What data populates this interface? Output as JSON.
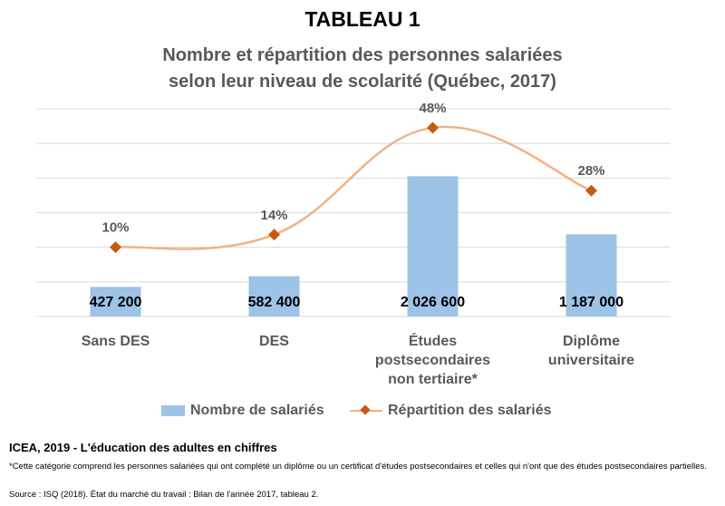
{
  "header": {
    "title": "TABLEAU 1",
    "subtitle_line1": "Nombre et répartition des personnes salariées",
    "subtitle_line2": "selon leur niveau de scolarité (Québec, 2017)"
  },
  "chart_data": {
    "type": "bar",
    "categories": [
      [
        "Sans DES"
      ],
      [
        "DES"
      ],
      [
        "Études",
        "postsecondaires",
        "non tertiaire*"
      ],
      [
        "Diplôme",
        "universitaire"
      ]
    ],
    "series": [
      {
        "name": "Nombre de salariés",
        "kind": "bar",
        "values": [
          427200,
          582400,
          2026600,
          1187000
        ],
        "labels": [
          "427 200",
          "582 400",
          "2 026 600",
          "1 187 000"
        ],
        "color": "#9dc3e6"
      },
      {
        "name": "Répartition des salariés",
        "kind": "line",
        "smooth": true,
        "values": [
          10,
          14,
          48,
          28
        ],
        "labels": [
          "10%",
          "14%",
          "48%",
          "28%"
        ],
        "line_color": "#f4b183",
        "marker_color": "#c55a11"
      }
    ],
    "ylim_bar": [
      0,
      3000000
    ],
    "ylim_line": [
      -12,
      54
    ],
    "gridlines": true,
    "legend_position": "bottom"
  },
  "footer": {
    "source_title": "ICEA, 2019 - L'éducation des adultes en chiffres",
    "note": "*Cette catégorie comprend les personnes salariées qui ont complété un diplôme ou un certificat d'études postsecondaires et celles qui n'ont que des études postsecondaires partielles.",
    "source": "Source : ISQ (2018). État du marché du travail : Bilan de l'année 2017, tableau 2."
  }
}
